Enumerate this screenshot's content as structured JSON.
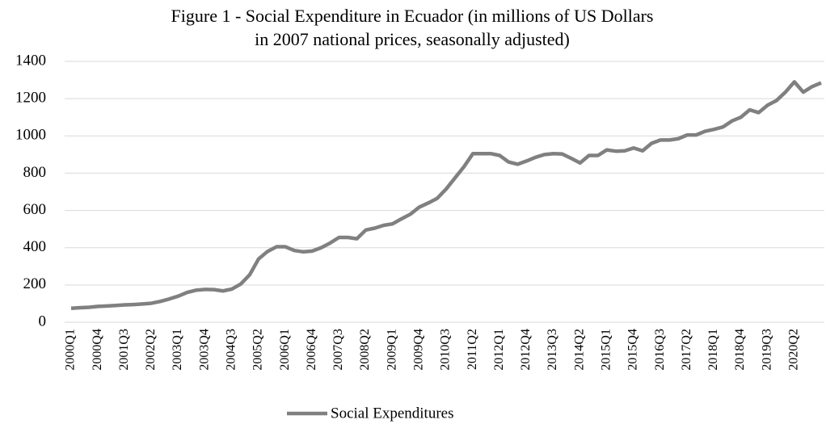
{
  "chart_data": {
    "type": "line",
    "title": [
      "Figure 1 - Social Expenditure in Ecuador (in millions of US Dollars",
      "in 2007 national prices, seasonally adjusted)"
    ],
    "categories": [
      "2000Q1",
      null,
      null,
      "2000Q4",
      null,
      null,
      "2001Q3",
      null,
      null,
      "2002Q2",
      null,
      null,
      "2003Q1",
      null,
      null,
      "2003Q4",
      null,
      null,
      "2004Q3",
      null,
      null,
      "2005Q2",
      null,
      null,
      "2006Q1",
      null,
      null,
      "2006Q4",
      null,
      null,
      "2007Q3",
      null,
      null,
      "2008Q2",
      null,
      null,
      "2009Q1",
      null,
      null,
      "2009Q4",
      null,
      null,
      "2010Q3",
      null,
      null,
      "2011Q2",
      null,
      null,
      "2012Q1",
      null,
      null,
      "2012Q4",
      null,
      null,
      "2013Q3",
      null,
      null,
      "2014Q2",
      null,
      null,
      "2015Q1",
      null,
      null,
      "2015Q4",
      null,
      null,
      "2016Q3",
      null,
      null,
      "2017Q2",
      null,
      null,
      "2018Q1",
      null,
      null,
      "2018Q4",
      null,
      null,
      "2019Q3",
      null,
      null,
      "2020Q2",
      null,
      null,
      null
    ],
    "series": [
      {
        "name": "Social Expenditures",
        "color": "#808080",
        "values": [
          75,
          78,
          80,
          85,
          87,
          90,
          93,
          95,
          98,
          102,
          112,
          125,
          140,
          160,
          172,
          176,
          175,
          168,
          178,
          205,
          255,
          340,
          380,
          405,
          405,
          385,
          378,
          382,
          400,
          425,
          455,
          455,
          448,
          495,
          505,
          520,
          528,
          555,
          580,
          618,
          640,
          665,
          715,
          775,
          835,
          905,
          905,
          905,
          895,
          860,
          848,
          865,
          885,
          900,
          905,
          903,
          880,
          855,
          895,
          895,
          925,
          918,
          920,
          935,
          920,
          960,
          978,
          978,
          985,
          1005,
          1005,
          1025,
          1035,
          1048,
          1080,
          1100,
          1140,
          1125,
          1165,
          1190,
          1235,
          1290,
          1235,
          1265,
          1285
        ]
      }
    ],
    "ylim": [
      0,
      1400
    ],
    "yticks": [
      0,
      200,
      400,
      600,
      800,
      1000,
      1200,
      1400
    ],
    "grid": true,
    "legend": "bottom"
  }
}
